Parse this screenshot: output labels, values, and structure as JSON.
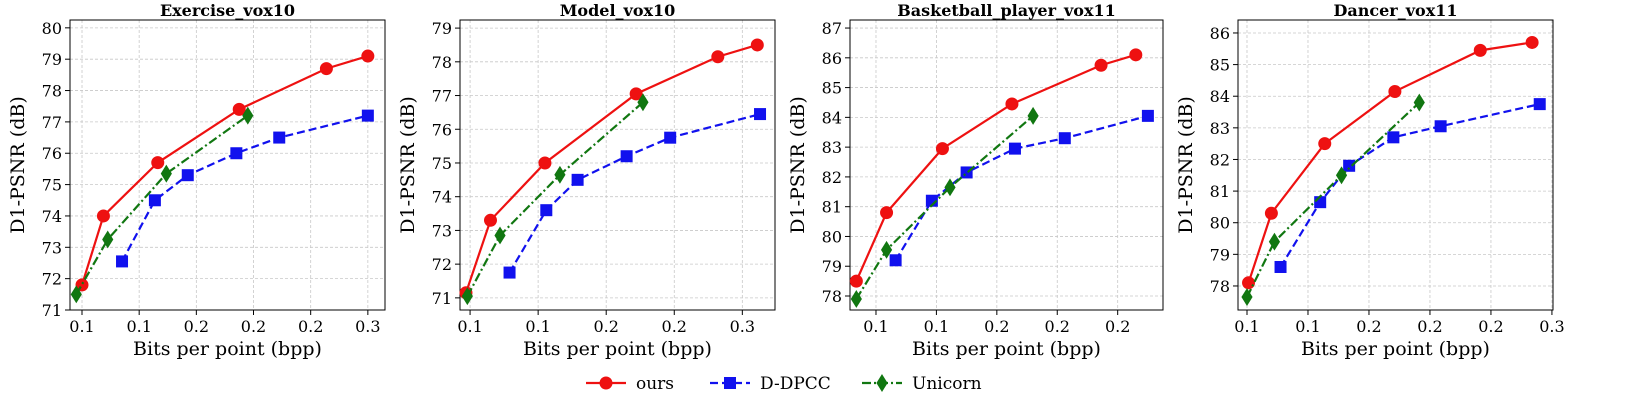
{
  "chart_data": [
    {
      "type": "line",
      "title": "Exercise_vox10",
      "xlabel": "Bits per point (bpp)",
      "ylabel": "D1-PSNR (dB)",
      "xlim": [
        0.0716,
        0.292
      ],
      "ylim": [
        71,
        80.25
      ],
      "xticks": [
        {
          "value": 0.08,
          "label": "0.1"
        },
        {
          "value": 0.12,
          "label": "0.1"
        },
        {
          "value": 0.16,
          "label": "0.2"
        },
        0.2,
        {
          "value": 0.24,
          "label": "0.2"
        },
        {
          "value": 0.28,
          "label": "0.3"
        }
      ],
      "yticks": [
        71,
        72,
        73,
        74,
        75,
        76,
        77,
        78,
        79,
        80
      ],
      "grid": true,
      "series": [
        {
          "name": "ours",
          "color": "#ee1111",
          "linestyle": "solid",
          "marker": "circle",
          "x": [
            0.08,
            0.095,
            0.133,
            0.19,
            0.251,
            0.28
          ],
          "values": [
            71.8,
            74.0,
            75.7,
            77.4,
            78.7,
            79.1
          ]
        },
        {
          "name": "D-DPCC",
          "color": "#1111ee",
          "linestyle": "dashed",
          "marker": "square",
          "x": [
            0.108,
            0.131,
            0.154,
            0.188,
            0.218,
            0.28
          ],
          "values": [
            72.55,
            74.5,
            75.3,
            76.0,
            76.5,
            77.2
          ]
        },
        {
          "name": "Unicorn",
          "color": "#117711",
          "linestyle": "dashdot",
          "marker": "diamond",
          "x": [
            0.076,
            0.098,
            0.139,
            0.196
          ],
          "values": [
            71.5,
            73.25,
            75.35,
            77.2
          ]
        }
      ]
    },
    {
      "type": "line",
      "title": "Model_vox10",
      "xlabel": "Bits per point (bpp)",
      "ylabel": "D1-PSNR (dB)",
      "xlim": [
        0.0926,
        0.324
      ],
      "ylim": [
        70.64,
        79.24
      ],
      "xticks": [
        0.1,
        {
          "value": 0.15,
          "label": "0.1"
        },
        0.2,
        {
          "value": 0.25,
          "label": "0.2"
        },
        0.3
      ],
      "yticks": [
        71,
        72,
        73,
        74,
        75,
        76,
        77,
        78,
        79
      ],
      "grid": true,
      "series": [
        {
          "name": "ours",
          "color": "#ee1111",
          "linestyle": "solid",
          "marker": "circle",
          "x": [
            0.097,
            0.115,
            0.155,
            0.222,
            0.282,
            0.311
          ],
          "values": [
            71.15,
            73.3,
            75.0,
            77.05,
            78.15,
            78.5
          ]
        },
        {
          "name": "D-DPCC",
          "color": "#1111ee",
          "linestyle": "dashed",
          "marker": "square",
          "x": [
            0.129,
            0.156,
            0.179,
            0.215,
            0.247,
            0.313
          ],
          "values": [
            71.75,
            73.6,
            74.5,
            75.2,
            75.75,
            76.45
          ]
        },
        {
          "name": "Unicorn",
          "color": "#117711",
          "linestyle": "dashdot",
          "marker": "diamond",
          "x": [
            0.098,
            0.122,
            0.166,
            0.227
          ],
          "values": [
            71.05,
            72.85,
            74.65,
            76.8
          ]
        }
      ]
    },
    {
      "type": "line",
      "title": "Basketball_player_vox11",
      "xlabel": "Bits per point (bpp)",
      "ylabel": "D1-PSNR (dB)",
      "xlim": [
        0.0628,
        0.27
      ],
      "ylim": [
        77.53,
        87.27
      ],
      "xticks": [
        {
          "value": 0.08,
          "label": "0.1"
        },
        {
          "value": 0.12,
          "label": "0.1"
        },
        {
          "value": 0.16,
          "label": "0.2"
        },
        0.2,
        {
          "value": 0.24,
          "label": "0.2"
        }
      ],
      "yticks": [
        78,
        79,
        80,
        81,
        82,
        83,
        84,
        85,
        86,
        87
      ],
      "grid": true,
      "series": [
        {
          "name": "ours",
          "color": "#ee1111",
          "linestyle": "solid",
          "marker": "circle",
          "x": [
            0.067,
            0.087,
            0.124,
            0.17,
            0.229,
            0.252
          ],
          "values": [
            78.5,
            80.8,
            82.95,
            84.45,
            85.75,
            86.1
          ]
        },
        {
          "name": "D-DPCC",
          "color": "#1111ee",
          "linestyle": "dashed",
          "marker": "square",
          "x": [
            0.093,
            0.117,
            0.14,
            0.172,
            0.205,
            0.26
          ],
          "values": [
            79.2,
            81.2,
            82.15,
            82.95,
            83.3,
            84.05
          ]
        },
        {
          "name": "Unicorn",
          "color": "#117711",
          "linestyle": "dashdot",
          "marker": "diamond",
          "x": [
            0.067,
            0.087,
            0.129,
            0.184
          ],
          "values": [
            77.9,
            79.55,
            81.65,
            84.05
          ]
        }
      ]
    },
    {
      "type": "line",
      "title": "Dancer_vox11",
      "xlabel": "Bits per point (bpp)",
      "ylabel": "D1-PSNR (dB)",
      "xlim": [
        0.0741,
        0.2807
      ],
      "ylim": [
        77.24,
        86.41
      ],
      "xticks": [
        {
          "value": 0.08,
          "label": "0.1"
        },
        {
          "value": 0.12,
          "label": "0.1"
        },
        {
          "value": 0.16,
          "label": "0.2"
        },
        0.2,
        {
          "value": 0.24,
          "label": "0.2"
        },
        {
          "value": 0.28,
          "label": "0.3"
        }
      ],
      "yticks": [
        78,
        79,
        80,
        81,
        82,
        83,
        84,
        85,
        86
      ],
      "grid": true,
      "series": [
        {
          "name": "ours",
          "color": "#ee1111",
          "linestyle": "solid",
          "marker": "circle",
          "x": [
            0.081,
            0.096,
            0.131,
            0.177,
            0.233,
            0.267
          ],
          "values": [
            78.1,
            80.3,
            82.5,
            84.15,
            85.45,
            85.7
          ]
        },
        {
          "name": "D-DPCC",
          "color": "#1111ee",
          "linestyle": "dashed",
          "marker": "square",
          "x": [
            0.102,
            0.128,
            0.147,
            0.176,
            0.207,
            0.272
          ],
          "values": [
            78.6,
            80.65,
            81.8,
            82.7,
            83.05,
            83.75
          ]
        },
        {
          "name": "Unicorn",
          "color": "#117711",
          "linestyle": "dashdot",
          "marker": "diamond",
          "x": [
            0.08,
            0.098,
            0.142,
            0.193
          ],
          "values": [
            77.65,
            79.4,
            81.5,
            83.8
          ]
        }
      ]
    }
  ]
}
